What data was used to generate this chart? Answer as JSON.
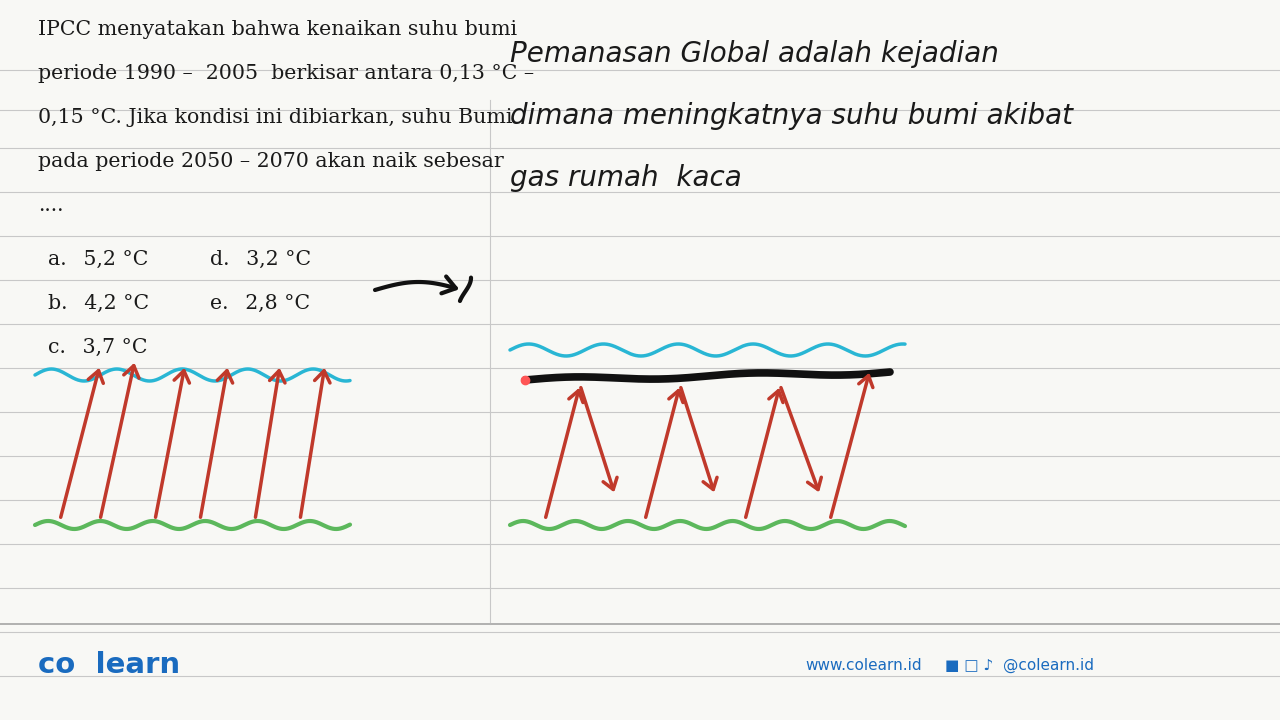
{
  "bg_color": "#f8f8f5",
  "line_color": "#d0d0d0",
  "text_color": "#1a1a1a",
  "question_text_lines": [
    "IPCC menyatakan bahwa kenaikan suhu bumi",
    "periode 1990 –  2005  berkisar antara 0,13 °C –",
    "0,15 °C. Jika kondisi ini dibiarkan, suhu Bumi",
    "pada periode 2050 – 2070 akan naik sebesar",
    "...."
  ],
  "options_left": [
    "a.  5,2 °C",
    "b.  4,2 °C",
    "c.  3,7 °C"
  ],
  "options_right": [
    "d.  3,2 °C",
    "e.  2,8 °C"
  ],
  "answer_line1": "Pemanasan Global adalah kejadian",
  "answer_line2": "dimana meningkatnya suhu bumi akibat",
  "answer_line3": "gas rumah  kaca",
  "brand_color": "#1a6bbf",
  "brand_name": "co  learn",
  "website": "www.colearn.id",
  "social": "@colearn.id",
  "cyan_color": "#29b6d4",
  "green_color": "#5cb85c",
  "red_color": "#c0392b",
  "black_color": "#111111",
  "ruled_line_color": "#c8c8c8",
  "divider_color": "#b0b0b0"
}
